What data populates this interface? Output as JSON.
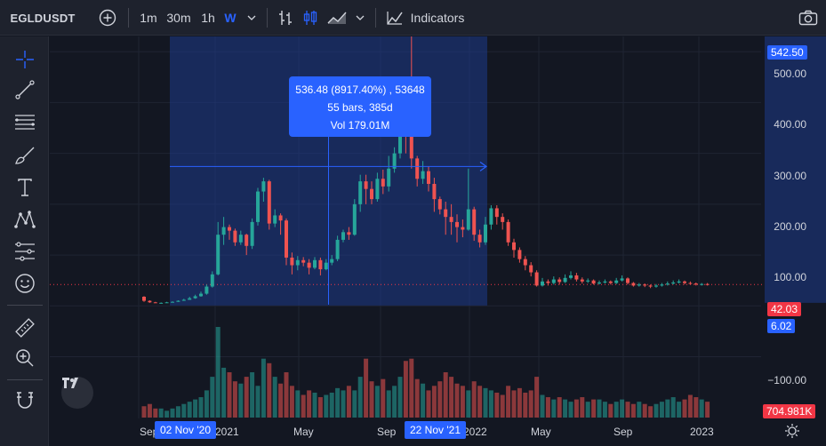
{
  "toolbar": {
    "symbol": "EGLDUSDT",
    "intervals": [
      "1m",
      "30m",
      "1h",
      "W"
    ],
    "active_interval": "W",
    "indicators_label": "Indicators",
    "icons": [
      "add-symbol-icon",
      "chevron-down-icon",
      "bar-style-icon",
      "candle-style-icon",
      "area-style-icon",
      "chevron-down-icon",
      "indicators-icon",
      "camera-icon"
    ]
  },
  "leftbar": {
    "tools": [
      "crosshair-icon",
      "trend-line-icon",
      "horizontal-lines-icon",
      "brush-icon",
      "text-icon",
      "pattern-icon",
      "prediction-icon",
      "emoji-icon",
      "ruler-icon",
      "zoom-in-icon",
      "magnet-icon"
    ]
  },
  "measure": {
    "line1": "536.48 (8917.40%) , 53648",
    "line2": "55 bars, 385d",
    "line3": "Vol 179.01M",
    "start_date": "02 Nov '20",
    "end_date": "22 Nov '21",
    "high_price": "542.50",
    "low_price": "6.02"
  },
  "price_axis": {
    "ticks": [
      "500.00",
      "400.00",
      "300.00",
      "200.00",
      "100.00",
      "−100.00"
    ],
    "last_price": "42.03",
    "volume_label": "704.981K"
  },
  "time_axis": {
    "ticks": [
      "Sep",
      "2021",
      "May",
      "Sep",
      "2022",
      "May",
      "Sep",
      "2023"
    ]
  },
  "colors": {
    "background": "#131722",
    "panel": "#1e222d",
    "up": "#26a69a",
    "down": "#ef5350",
    "accent": "#2962ff",
    "measure_fill": "#1e3a8a"
  },
  "logo_icon": "tradingview-logo-icon",
  "settings_icon": "settings-sun-icon",
  "chart_data": {
    "type": "candlestick",
    "symbol": "EGLDUSDT",
    "interval": "W",
    "ylim": [
      -100,
      542.5
    ],
    "xlabel": "",
    "ylabel": "",
    "grid": true,
    "measure": {
      "from": 6.02,
      "to": 542.5,
      "change": 536.48,
      "change_pct": 8917.4,
      "bars": 55,
      "days": 385,
      "volume": "179.01M"
    },
    "ohlc": [
      [
        18,
        10,
        19,
        8
      ],
      [
        10,
        7,
        11,
        6
      ],
      [
        7,
        6,
        8,
        6
      ],
      [
        6,
        6,
        7,
        6
      ],
      [
        6,
        7,
        8,
        6
      ],
      [
        7,
        8,
        9,
        7
      ],
      [
        8,
        10,
        11,
        8
      ],
      [
        10,
        12,
        14,
        10
      ],
      [
        12,
        15,
        18,
        12
      ],
      [
        15,
        19,
        22,
        14
      ],
      [
        19,
        24,
        28,
        18
      ],
      [
        24,
        38,
        42,
        22
      ],
      [
        38,
        62,
        68,
        36
      ],
      [
        62,
        140,
        165,
        60
      ],
      [
        140,
        155,
        175,
        120
      ],
      [
        155,
        148,
        160,
        130
      ],
      [
        148,
        125,
        152,
        118
      ],
      [
        125,
        140,
        148,
        120
      ],
      [
        140,
        118,
        142,
        100
      ],
      [
        118,
        165,
        172,
        112
      ],
      [
        165,
        225,
        232,
        158
      ],
      [
        225,
        245,
        252,
        205
      ],
      [
        245,
        162,
        248,
        150
      ],
      [
        162,
        178,
        190,
        155
      ],
      [
        178,
        168,
        182,
        140
      ],
      [
        168,
        95,
        172,
        80
      ],
      [
        95,
        80,
        105,
        62
      ],
      [
        80,
        90,
        98,
        70
      ],
      [
        90,
        85,
        96,
        78
      ],
      [
        85,
        75,
        92,
        62
      ],
      [
        75,
        90,
        96,
        72
      ],
      [
        90,
        72,
        95,
        60
      ],
      [
        72,
        85,
        92,
        70
      ],
      [
        85,
        92,
        100,
        80
      ],
      [
        92,
        130,
        138,
        88
      ],
      [
        130,
        145,
        150,
        125
      ],
      [
        145,
        140,
        155,
        130
      ],
      [
        140,
        200,
        210,
        138
      ],
      [
        200,
        245,
        258,
        185
      ],
      [
        245,
        230,
        258,
        200
      ],
      [
        230,
        210,
        245,
        200
      ],
      [
        210,
        250,
        262,
        205
      ],
      [
        250,
        235,
        268,
        220
      ],
      [
        235,
        270,
        295,
        225
      ],
      [
        270,
        300,
        312,
        262
      ],
      [
        300,
        390,
        420,
        290
      ],
      [
        390,
        360,
        395,
        300
      ],
      [
        360,
        290,
        542,
        270
      ],
      [
        290,
        250,
        295,
        235
      ],
      [
        250,
        265,
        285,
        240
      ],
      [
        265,
        240,
        275,
        225
      ],
      [
        240,
        210,
        252,
        185
      ],
      [
        210,
        190,
        215,
        180
      ],
      [
        190,
        175,
        205,
        140
      ],
      [
        175,
        165,
        200,
        140
      ],
      [
        165,
        155,
        180,
        125
      ],
      [
        155,
        150,
        170,
        135
      ],
      [
        150,
        190,
        270,
        148
      ],
      [
        190,
        140,
        195,
        128
      ],
      [
        140,
        125,
        150,
        115
      ],
      [
        125,
        160,
        175,
        120
      ],
      [
        160,
        192,
        198,
        150
      ],
      [
        192,
        175,
        198,
        160
      ],
      [
        175,
        165,
        182,
        150
      ],
      [
        165,
        125,
        170,
        118
      ],
      [
        125,
        110,
        132,
        95
      ],
      [
        110,
        92,
        115,
        85
      ],
      [
        92,
        80,
        98,
        70
      ],
      [
        80,
        66,
        86,
        58
      ],
      [
        66,
        40,
        70,
        38
      ],
      [
        40,
        48,
        55,
        38
      ],
      [
        48,
        45,
        52,
        40
      ],
      [
        45,
        52,
        58,
        42
      ],
      [
        52,
        47,
        56,
        42
      ],
      [
        47,
        55,
        62,
        45
      ],
      [
        55,
        60,
        68,
        52
      ],
      [
        60,
        52,
        65,
        48
      ],
      [
        52,
        48,
        56,
        44
      ],
      [
        48,
        50,
        54,
        45
      ],
      [
        50,
        44,
        52,
        42
      ],
      [
        44,
        46,
        50,
        42
      ],
      [
        46,
        48,
        52,
        44
      ],
      [
        48,
        45,
        50,
        42
      ],
      [
        45,
        50,
        55,
        43
      ],
      [
        50,
        54,
        60,
        48
      ],
      [
        54,
        45,
        56,
        42
      ],
      [
        45,
        40,
        47,
        38
      ],
      [
        40,
        42,
        45,
        38
      ],
      [
        42,
        40,
        44,
        37
      ],
      [
        40,
        38,
        42,
        35
      ],
      [
        38,
        40,
        43,
        36
      ],
      [
        40,
        42,
        45,
        38
      ],
      [
        42,
        44,
        48,
        40
      ],
      [
        44,
        46,
        50,
        42
      ],
      [
        46,
        48,
        52,
        44
      ],
      [
        48,
        45,
        50,
        42
      ],
      [
        45,
        44,
        48,
        42
      ],
      [
        44,
        42,
        46,
        40
      ],
      [
        42,
        43,
        45,
        40
      ],
      [
        43,
        42,
        45,
        40
      ]
    ],
    "volume": [
      5,
      6,
      4,
      4,
      3,
      4,
      5,
      6,
      7,
      8,
      9,
      12,
      18,
      40,
      22,
      20,
      16,
      15,
      18,
      20,
      14,
      26,
      24,
      18,
      15,
      20,
      14,
      12,
      10,
      12,
      11,
      9,
      10,
      11,
      13,
      12,
      14,
      12,
      18,
      26,
      16,
      14,
      17,
      12,
      14,
      18,
      25,
      26,
      17,
      15,
      12,
      14,
      16,
      20,
      18,
      15,
      14,
      12,
      16,
      14,
      13,
      12,
      11,
      10,
      14,
      12,
      13,
      11,
      12,
      18,
      10,
      9,
      8,
      9,
      8,
      7,
      8,
      9,
      7,
      8,
      8,
      7,
      6,
      7,
      8,
      7,
      6,
      7,
      6,
      5,
      6,
      7,
      8,
      9,
      7,
      8,
      10,
      9,
      8,
      7
    ]
  }
}
